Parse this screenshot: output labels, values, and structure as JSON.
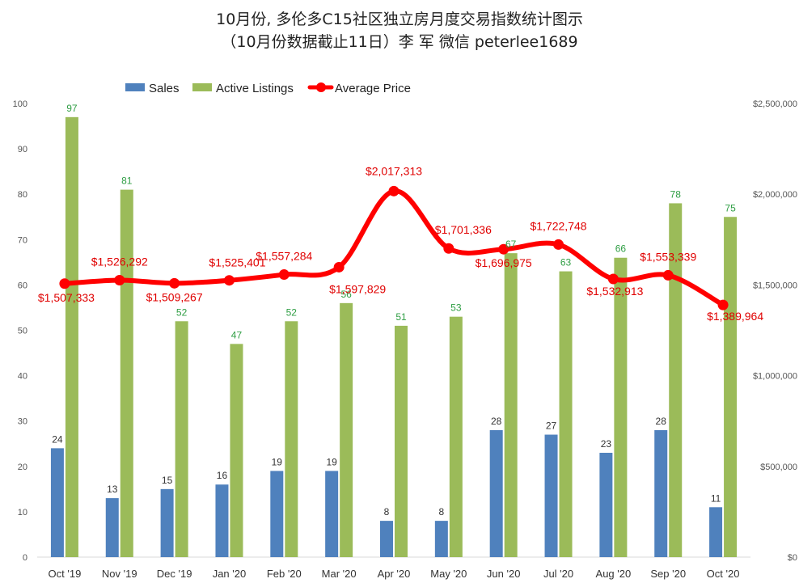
{
  "chart_data": {
    "type": "bar",
    "title_line1": "10月份, 多伦多C15社区独立房月度交易指数统计图示",
    "title_line2": "（10月份数据截止11日）李 军  微信  peterlee1689",
    "categories": [
      "Oct '19",
      "Nov '19",
      "Dec '19",
      "Jan '20",
      "Feb '20",
      "Mar '20",
      "Apr '20",
      "May '20",
      "Jun '20",
      "Jul '20",
      "Aug '20",
      "Sep '20",
      "Oct '20"
    ],
    "series": [
      {
        "name": "Sales",
        "type": "bar",
        "color": "#4f81bd",
        "axis": "left",
        "values": [
          24,
          13,
          15,
          16,
          19,
          19,
          8,
          8,
          28,
          27,
          23,
          28,
          11
        ]
      },
      {
        "name": "Active Listings",
        "type": "bar",
        "color": "#9bbb59",
        "axis": "left",
        "values": [
          97,
          81,
          52,
          47,
          52,
          56,
          51,
          53,
          67,
          63,
          66,
          78,
          75
        ]
      },
      {
        "name": "Average Price",
        "type": "line",
        "color": "#ff0000",
        "axis": "right",
        "values": [
          1507333,
          1526292,
          1509267,
          1525401,
          1557284,
          1597829,
          2017313,
          1701336,
          1696975,
          1722748,
          1532913,
          1553339,
          1389964
        ],
        "labels": [
          "$1,507,333",
          "$1,526,292",
          "$1,509,267",
          "$1,525,401",
          "$1,557,284",
          "$1,597,829",
          "$2,017,313",
          "$1,701,336",
          "$1,696,975",
          "$1,722,748",
          "$1,532,913",
          "$1,553,339",
          "$1,389,964"
        ]
      }
    ],
    "y_left": {
      "min": 0,
      "max": 100,
      "ticks": [
        "0",
        "10",
        "20",
        "30",
        "40",
        "50",
        "60",
        "70",
        "80",
        "90",
        "100"
      ]
    },
    "y_right": {
      "min": 0,
      "max": 2500000,
      "ticks": [
        "$0",
        "$500,000",
        "$1,000,000",
        "$1,500,000",
        "$2,000,000",
        "$2,500,000"
      ]
    },
    "grid": false,
    "legend_position": "top"
  }
}
